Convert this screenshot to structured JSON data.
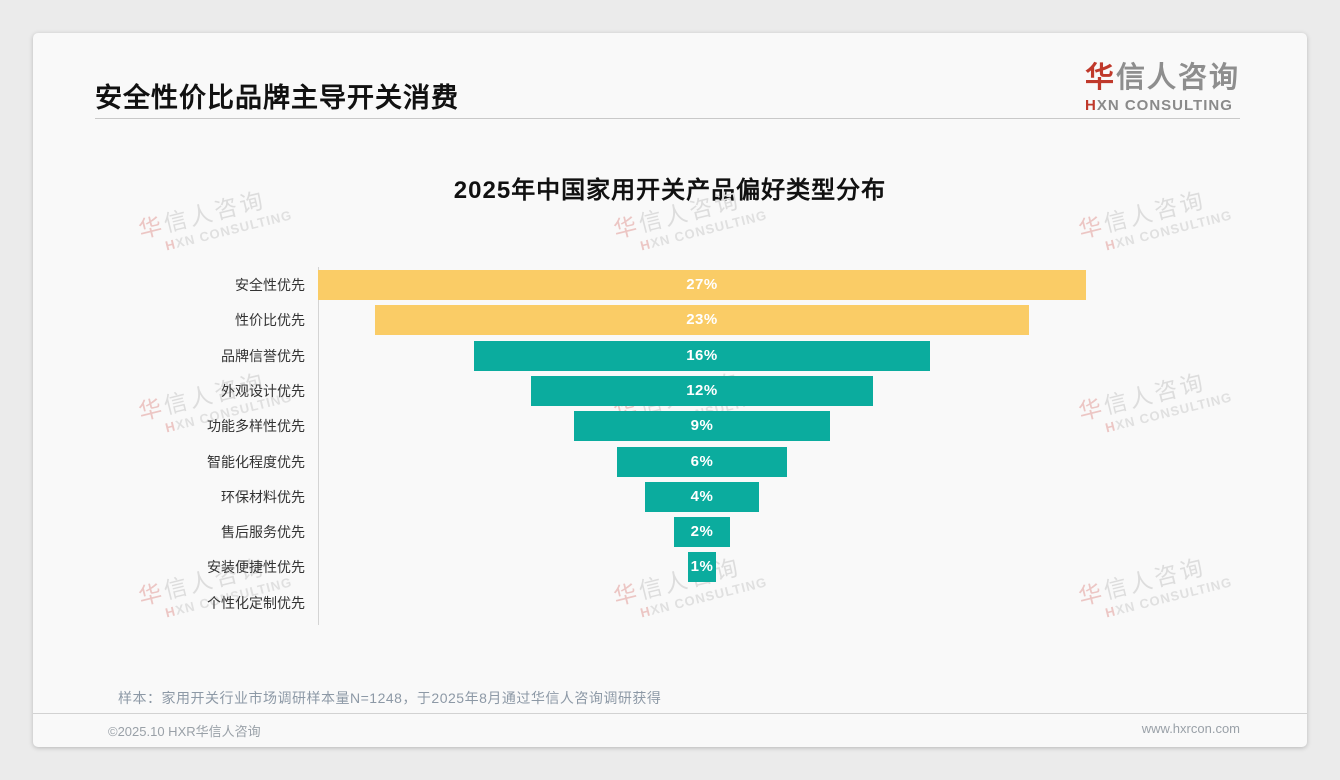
{
  "header": {
    "title": "安全性价比品牌主导开关消费"
  },
  "logo": {
    "cn_first": "华",
    "cn_rest": "信人咨询",
    "en_first": "H",
    "en_rest": "XN CONSULTING"
  },
  "watermark": {
    "line1": "华信人咨询",
    "line2": "HXN CONSULTING"
  },
  "chart_data": {
    "type": "bar",
    "subtype": "horizontal-centered-funnel",
    "title": "2025年中国家用开关产品偏好类型分布",
    "categories": [
      "安全性优先",
      "性价比优先",
      "品牌信誉优先",
      "外观设计优先",
      "功能多样性优先",
      "智能化程度优先",
      "环保材料优先",
      "售后服务优先",
      "安装便捷性优先",
      "个性化定制优先"
    ],
    "values": [
      27,
      23,
      16,
      12,
      9,
      6,
      4,
      2,
      1,
      0
    ],
    "unit": "%",
    "value_labels": [
      "27%",
      "23%",
      "16%",
      "12%",
      "9%",
      "6%",
      "4%",
      "2%",
      "1%",
      ""
    ],
    "bar_colors": [
      "#FACC66",
      "#FACC66",
      "#0BAC9E",
      "#0BAC9E",
      "#0BAC9E",
      "#0BAC9E",
      "#0BAC9E",
      "#0BAC9E",
      "#0BAC9E",
      "#0BAC9E"
    ],
    "highlight_color": "#FACC66",
    "normal_color": "#0BAC9E",
    "value_label_color": "#ffffff",
    "xlim": [
      0,
      27
    ],
    "grid": false,
    "legend": false
  },
  "note": "样本：家用开关行业市场调研样本量N=1248，于2025年8月通过华信人咨询调研获得",
  "footer": {
    "left": "©2025.10 HXR华信人咨询",
    "right": "www.hxrcon.com"
  }
}
